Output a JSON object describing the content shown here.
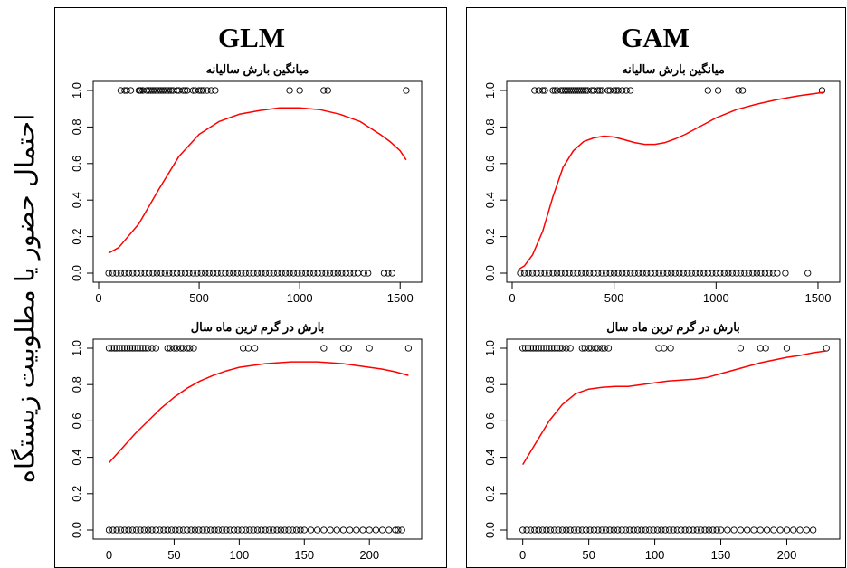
{
  "y_axis_label": "احتمال حضور یا مطلوبیت زیستگاه",
  "model_titles": [
    "GLM",
    "GAM"
  ],
  "colors": {
    "curve": "#ff0000",
    "points": "#000000",
    "axis": "#000000"
  },
  "chart_data": [
    {
      "type": "line",
      "model": "GLM",
      "title": "میانگین بارش سالیانه",
      "xlim": [
        0,
        1580
      ],
      "ylim": [
        0,
        1
      ],
      "x_ticks": [
        0,
        500,
        1000,
        1500
      ],
      "y_ticks": [
        0.0,
        0.2,
        0.4,
        0.6,
        0.8,
        1.0
      ],
      "curve": {
        "x": [
          50,
          100,
          200,
          300,
          400,
          500,
          600,
          700,
          800,
          900,
          1000,
          1100,
          1200,
          1300,
          1400,
          1450,
          1500,
          1530
        ],
        "y": [
          0.11,
          0.14,
          0.27,
          0.46,
          0.64,
          0.76,
          0.83,
          0.87,
          0.89,
          0.905,
          0.905,
          0.895,
          0.87,
          0.83,
          0.76,
          0.72,
          0.67,
          0.62
        ]
      },
      "presence_x": [
        110,
        130,
        140,
        160,
        200,
        205,
        210,
        220,
        240,
        250,
        260,
        270,
        280,
        290,
        300,
        310,
        320,
        330,
        340,
        350,
        360,
        370,
        390,
        400,
        420,
        430,
        440,
        470,
        480,
        500,
        510,
        520,
        540,
        560,
        580,
        950,
        1000,
        1120,
        1140,
        1530
      ],
      "absence_x": [
        50,
        70,
        90,
        110,
        130,
        150,
        170,
        190,
        210,
        230,
        250,
        270,
        290,
        310,
        330,
        350,
        370,
        390,
        410,
        430,
        450,
        470,
        490,
        510,
        530,
        550,
        570,
        590,
        610,
        630,
        650,
        670,
        690,
        710,
        730,
        750,
        770,
        790,
        810,
        830,
        850,
        870,
        890,
        910,
        930,
        950,
        970,
        990,
        1010,
        1030,
        1050,
        1070,
        1090,
        1110,
        1130,
        1150,
        1170,
        1190,
        1210,
        1230,
        1250,
        1270,
        1290,
        1320,
        1340,
        1420,
        1440,
        1460
      ]
    },
    {
      "type": "line",
      "model": "GAM",
      "title": "میانگین بارش سالیانه",
      "xlim": [
        0,
        1580
      ],
      "ylim": [
        0,
        1
      ],
      "x_ticks": [
        0,
        500,
        1000,
        1500
      ],
      "y_ticks": [
        0.0,
        0.2,
        0.4,
        0.6,
        0.8,
        1.0
      ],
      "curve": {
        "x": [
          30,
          60,
          100,
          150,
          200,
          250,
          300,
          350,
          400,
          450,
          500,
          550,
          600,
          650,
          700,
          750,
          800,
          850,
          900,
          950,
          1000,
          1100,
          1200,
          1300,
          1400,
          1500,
          1530
        ],
        "y": [
          0.02,
          0.04,
          0.1,
          0.23,
          0.42,
          0.58,
          0.67,
          0.72,
          0.74,
          0.75,
          0.745,
          0.73,
          0.715,
          0.705,
          0.705,
          0.715,
          0.735,
          0.76,
          0.79,
          0.82,
          0.85,
          0.895,
          0.925,
          0.95,
          0.97,
          0.985,
          0.99
        ]
      },
      "presence_x": [
        110,
        130,
        150,
        160,
        200,
        210,
        220,
        240,
        250,
        260,
        270,
        280,
        290,
        300,
        310,
        320,
        330,
        340,
        350,
        360,
        370,
        390,
        400,
        420,
        430,
        440,
        470,
        480,
        500,
        510,
        520,
        540,
        560,
        580,
        960,
        1010,
        1110,
        1130,
        1520
      ],
      "absence_x": [
        40,
        60,
        80,
        100,
        120,
        140,
        160,
        180,
        200,
        220,
        240,
        260,
        280,
        300,
        320,
        340,
        360,
        380,
        400,
        420,
        440,
        460,
        480,
        500,
        520,
        540,
        560,
        580,
        600,
        620,
        640,
        660,
        680,
        700,
        720,
        740,
        760,
        780,
        800,
        820,
        840,
        860,
        880,
        900,
        920,
        940,
        960,
        980,
        1000,
        1020,
        1040,
        1060,
        1080,
        1100,
        1120,
        1140,
        1160,
        1180,
        1200,
        1220,
        1240,
        1260,
        1280,
        1300,
        1340,
        1450
      ]
    },
    {
      "type": "line",
      "model": "GLM",
      "title": "بارش در گرم ترین ماه سال",
      "xlim": [
        -8,
        236
      ],
      "ylim": [
        0,
        1
      ],
      "x_ticks": [
        0,
        50,
        100,
        150,
        200
      ],
      "y_ticks": [
        0.0,
        0.2,
        0.4,
        0.6,
        0.8,
        1.0
      ],
      "curve": {
        "x": [
          0,
          10,
          20,
          30,
          40,
          50,
          60,
          70,
          80,
          90,
          100,
          110,
          120,
          130,
          140,
          150,
          160,
          170,
          180,
          190,
          200,
          210,
          220,
          230
        ],
        "y": [
          0.37,
          0.45,
          0.53,
          0.6,
          0.67,
          0.73,
          0.78,
          0.82,
          0.85,
          0.875,
          0.895,
          0.905,
          0.915,
          0.92,
          0.925,
          0.925,
          0.925,
          0.92,
          0.915,
          0.905,
          0.895,
          0.885,
          0.87,
          0.85
        ]
      },
      "presence_x": [
        0,
        2,
        4,
        6,
        8,
        10,
        12,
        14,
        16,
        18,
        20,
        22,
        24,
        26,
        28,
        30,
        33,
        36,
        45,
        47,
        50,
        52,
        55,
        57,
        60,
        62,
        65,
        103,
        107,
        112,
        165,
        180,
        184,
        200,
        230
      ],
      "absence_x": [
        0,
        3,
        6,
        9,
        12,
        15,
        18,
        21,
        24,
        27,
        30,
        33,
        36,
        39,
        42,
        45,
        48,
        51,
        54,
        57,
        60,
        63,
        66,
        69,
        72,
        75,
        78,
        81,
        84,
        87,
        90,
        93,
        96,
        99,
        102,
        105,
        108,
        111,
        114,
        117,
        120,
        123,
        126,
        129,
        132,
        135,
        138,
        141,
        144,
        147,
        150,
        155,
        160,
        165,
        170,
        175,
        180,
        185,
        190,
        195,
        200,
        205,
        210,
        215,
        220,
        222,
        225
      ]
    },
    {
      "type": "line",
      "model": "GAM",
      "title": "بارش در گرم ترین ماه سال",
      "xlim": [
        -8,
        236
      ],
      "ylim": [
        0,
        1
      ],
      "x_ticks": [
        0,
        50,
        100,
        150,
        200
      ],
      "y_ticks": [
        0.0,
        0.2,
        0.4,
        0.6,
        0.8,
        1.0
      ],
      "curve": {
        "x": [
          0,
          10,
          20,
          30,
          40,
          50,
          60,
          70,
          80,
          90,
          100,
          110,
          120,
          130,
          140,
          150,
          160,
          170,
          180,
          190,
          200,
          210,
          220,
          230
        ],
        "y": [
          0.36,
          0.48,
          0.6,
          0.69,
          0.75,
          0.775,
          0.785,
          0.79,
          0.79,
          0.8,
          0.81,
          0.82,
          0.825,
          0.83,
          0.84,
          0.86,
          0.88,
          0.9,
          0.92,
          0.935,
          0.95,
          0.96,
          0.975,
          0.985
        ]
      },
      "presence_x": [
        0,
        2,
        4,
        6,
        8,
        10,
        12,
        14,
        16,
        18,
        20,
        22,
        24,
        26,
        28,
        30,
        33,
        36,
        45,
        47,
        50,
        52,
        55,
        57,
        60,
        62,
        65,
        103,
        107,
        112,
        165,
        180,
        184,
        200,
        230
      ],
      "absence_x": [
        0,
        3,
        6,
        9,
        12,
        15,
        18,
        21,
        24,
        27,
        30,
        33,
        36,
        39,
        42,
        45,
        48,
        51,
        54,
        57,
        60,
        63,
        66,
        69,
        72,
        75,
        78,
        81,
        84,
        87,
        90,
        93,
        96,
        99,
        102,
        105,
        108,
        111,
        114,
        117,
        120,
        123,
        126,
        129,
        132,
        135,
        138,
        141,
        144,
        147,
        150,
        155,
        160,
        165,
        170,
        175,
        180,
        185,
        190,
        195,
        200,
        205,
        210,
        215,
        220
      ]
    }
  ]
}
